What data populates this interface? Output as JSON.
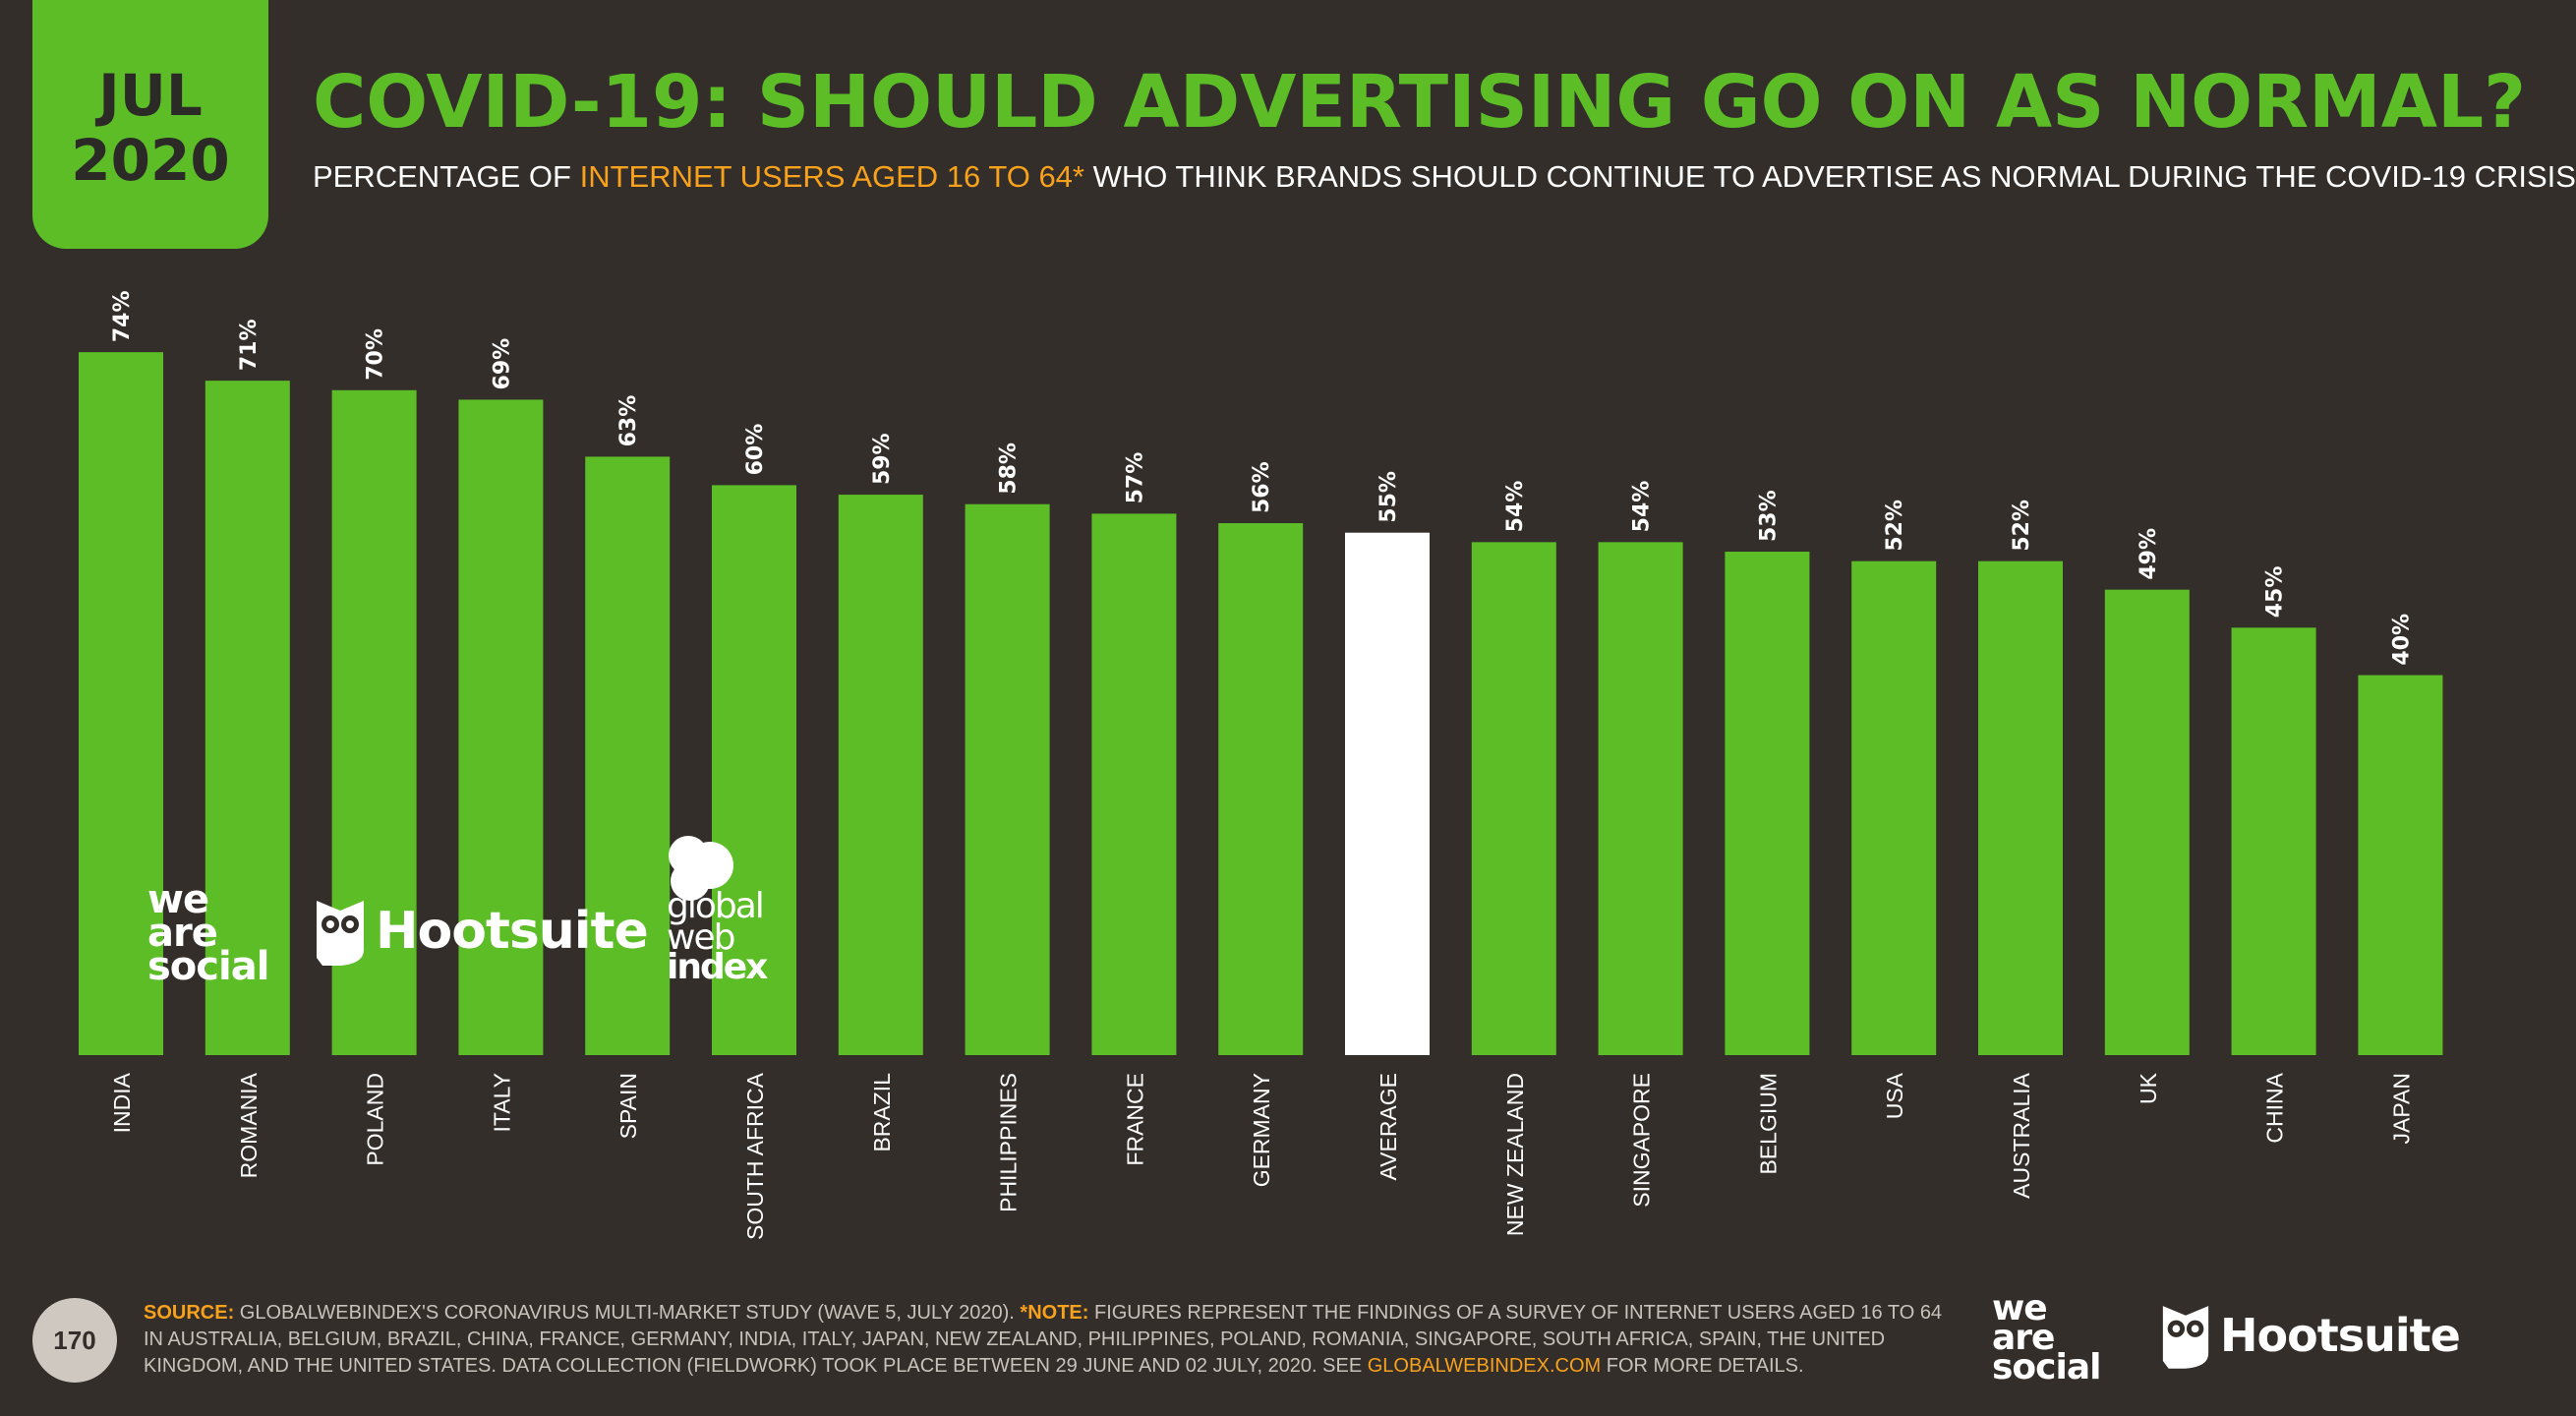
{
  "badge": {
    "month": "JUL",
    "year": "2020"
  },
  "title": "COVID-19: SHOULD ADVERTISING GO ON AS NORMAL?",
  "subtitle": {
    "before": "PERCENTAGE OF ",
    "highlight": "INTERNET USERS AGED 16 TO 64*",
    "after": " WHO THINK BRANDS SHOULD CONTINUE TO ADVERTISE AS NORMAL DURING THE COVID-19 CRISIS"
  },
  "colors": {
    "background": "#332e2a",
    "bar": "#5cbd27",
    "highlight_bar": "#ffffff",
    "accent": "#f7a11c"
  },
  "chart_data": {
    "type": "bar",
    "title": "COVID-19: SHOULD ADVERTISING GO ON AS NORMAL?",
    "xlabel": "",
    "ylabel": "",
    "ylim": [
      0,
      80
    ],
    "unit": "%",
    "categories": [
      "INDIA",
      "ROMANIA",
      "POLAND",
      "ITALY",
      "SPAIN",
      "SOUTH AFRICA",
      "BRAZIL",
      "PHILIPPINES",
      "FRANCE",
      "GERMANY",
      "AVERAGE",
      "NEW ZEALAND",
      "SINGAPORE",
      "BELGIUM",
      "USA",
      "AUSTRALIA",
      "UK",
      "CHINA",
      "JAPAN"
    ],
    "values": [
      74,
      71,
      70,
      69,
      63,
      60,
      59,
      58,
      57,
      56,
      55,
      54,
      54,
      53,
      52,
      52,
      49,
      45,
      40
    ],
    "labels": [
      "74%",
      "71%",
      "70%",
      "69%",
      "63%",
      "60%",
      "59%",
      "58%",
      "57%",
      "56%",
      "55%",
      "54%",
      "54%",
      "53%",
      "52%",
      "52%",
      "49%",
      "45%",
      "40%"
    ],
    "highlight_category": "AVERAGE"
  },
  "watermarks": {
    "we_are_social": [
      "we",
      "are",
      "social"
    ],
    "hootsuite": "Hootsuite",
    "gwi": [
      "global",
      "web",
      "index"
    ]
  },
  "footer": {
    "page_number": "170",
    "source_label": "SOURCE:",
    "source_text": " GLOBALWEBINDEX'S CORONAVIRUS MULTI-MARKET STUDY (WAVE 5, JULY 2020). ",
    "note_label": "*NOTE:",
    "note_text": " FIGURES REPRESENT THE FINDINGS OF A SURVEY OF INTERNET USERS AGED 16 TO 64 IN AUSTRALIA, BELGIUM, BRAZIL, CHINA, FRANCE, GERMANY, INDIA, ITALY, JAPAN, NEW ZEALAND, PHILIPPINES, POLAND, ROMANIA, SINGAPORE, SOUTH AFRICA, SPAIN, THE UNITED KINGDOM, AND THE UNITED STATES. DATA COLLECTION (FIELDWORK) TOOK PLACE BETWEEN 29 JUNE AND 02 JULY, 2020. SEE ",
    "link_text": "GLOBALWEBINDEX.COM",
    "end_text": " FOR MORE DETAILS."
  }
}
